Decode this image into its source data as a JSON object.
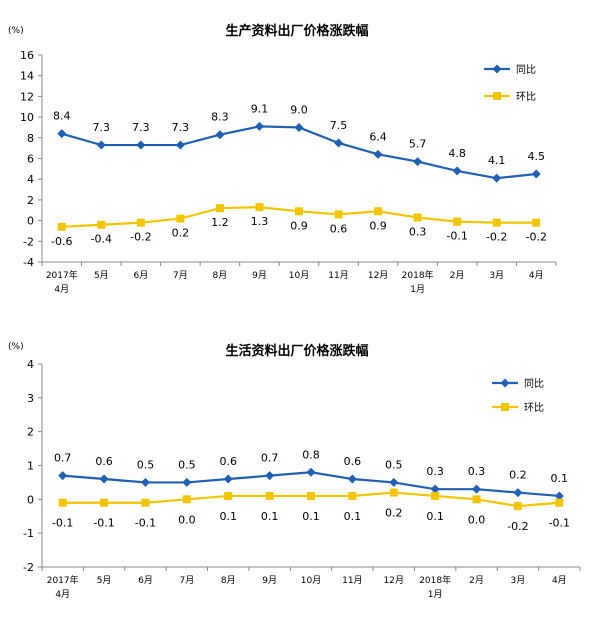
{
  "chart_data": [
    {
      "type": "line",
      "title": "生产资料出厂价格涨跌幅",
      "unit_label": "(%)",
      "ylim": [
        -4,
        16
      ],
      "yticks": [
        -4,
        -2,
        0,
        2,
        4,
        6,
        8,
        10,
        12,
        14,
        16
      ],
      "grid": false,
      "legend_position": "top-right",
      "categories": [
        [
          "2017年",
          "4月"
        ],
        [
          "5月"
        ],
        [
          "6月"
        ],
        [
          "7月"
        ],
        [
          "8月"
        ],
        [
          "9月"
        ],
        [
          "10月"
        ],
        [
          "11月"
        ],
        [
          "12月"
        ],
        [
          "2018年",
          "1月"
        ],
        [
          "2月"
        ],
        [
          "3月"
        ],
        [
          "4月"
        ]
      ],
      "series": [
        {
          "name": "同比",
          "color": "#1f5fb4",
          "marker": "diamond",
          "values": [
            8.4,
            7.3,
            7.3,
            7.3,
            8.3,
            9.1,
            9.0,
            7.5,
            6.4,
            5.7,
            4.8,
            4.1,
            4.5
          ],
          "labels": [
            "8.4",
            "7.3",
            "7.3",
            "7.3",
            "8.3",
            "9.1",
            "9.0",
            "7.5",
            "6.4",
            "5.7",
            "4.8",
            "4.1",
            "4.5"
          ]
        },
        {
          "name": "环比",
          "color": "#f2c500",
          "marker": "square",
          "values": [
            -0.6,
            -0.4,
            -0.2,
            0.2,
            1.2,
            1.3,
            0.9,
            0.6,
            0.9,
            0.3,
            -0.1,
            -0.2,
            -0.2
          ],
          "labels": [
            "-0.6",
            "-0.4",
            "-0.2",
            "0.2",
            "1.2",
            "1.3",
            "0.9",
            "0.6",
            "0.9",
            "0.3",
            "-0.1",
            "-0.2",
            "-0.2"
          ]
        }
      ]
    },
    {
      "type": "line",
      "title": "生活资料出厂价格涨跌幅",
      "unit_label": "(%)",
      "ylim": [
        -2,
        4
      ],
      "yticks": [
        -2,
        -1,
        0,
        1,
        2,
        3,
        4
      ],
      "grid": false,
      "legend_position": "top-right",
      "categories": [
        [
          "2017年",
          "4月"
        ],
        [
          "5月"
        ],
        [
          "6月"
        ],
        [
          "7月"
        ],
        [
          "8月"
        ],
        [
          "9月"
        ],
        [
          "10月"
        ],
        [
          "11月"
        ],
        [
          "12月"
        ],
        [
          "2018年",
          "1月"
        ],
        [
          "2月"
        ],
        [
          "3月"
        ],
        [
          "4月"
        ]
      ],
      "series": [
        {
          "name": "同比",
          "color": "#1f5fb4",
          "marker": "diamond",
          "values": [
            0.7,
            0.6,
            0.5,
            0.5,
            0.6,
            0.7,
            0.8,
            0.6,
            0.5,
            0.3,
            0.3,
            0.2,
            0.1
          ],
          "labels": [
            "0.7",
            "0.6",
            "0.5",
            "0.5",
            "0.6",
            "0.7",
            "0.8",
            "0.6",
            "0.5",
            "0.3",
            "0.3",
            "0.2",
            "0.1"
          ]
        },
        {
          "name": "环比",
          "color": "#f2c500",
          "marker": "square",
          "values": [
            -0.1,
            -0.1,
            -0.1,
            0.0,
            0.1,
            0.1,
            0.1,
            0.1,
            0.2,
            0.1,
            0.0,
            -0.2,
            -0.1
          ],
          "labels": [
            "-0.1",
            "-0.1",
            "-0.1",
            "0.0",
            "0.1",
            "0.1",
            "0.1",
            "0.1",
            "0.2",
            "0.1",
            "0.0",
            "-0.2",
            "-0.1"
          ]
        }
      ]
    }
  ]
}
